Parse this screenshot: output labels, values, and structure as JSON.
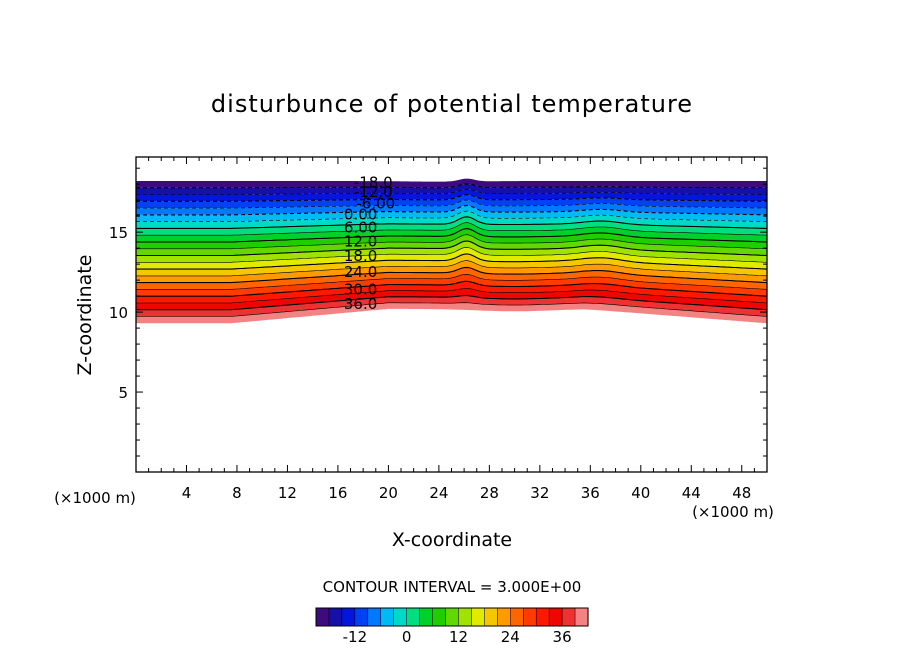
{
  "chart_data": {
    "type": "contour",
    "title": "disturbunce of potential temperature",
    "xlabel": "X-coordinate",
    "ylabel": "Z-coordinate",
    "x_unit": "(×1000 m)",
    "z_unit": "(×1000 m)",
    "xlim": [
      0,
      50
    ],
    "ylim": [
      0,
      19.7
    ],
    "x_ticks": [
      4,
      8,
      12,
      16,
      20,
      24,
      28,
      32,
      36,
      40,
      44,
      48
    ],
    "x_tick_labels": [
      "4",
      "8",
      "12",
      "16",
      "20",
      "24",
      "28",
      "32",
      "36",
      "40",
      "44",
      "48"
    ],
    "y_ticks": [
      5,
      10,
      15
    ],
    "y_tick_labels": [
      "5",
      "10",
      "15"
    ],
    "contour_interval_label": "CONTOUR INTERVAL = 3.000E+00",
    "contour_interval": 3,
    "value_range": [
      -21,
      42
    ],
    "contour_labels": [
      {
        "text": "-18.0",
        "x": 18.8,
        "y": 18.1
      },
      {
        "text": "-12.0",
        "x": 18.8,
        "y": 17.5
      },
      {
        "text": "-6.00",
        "x": 19.0,
        "y": 16.8
      },
      {
        "text": "0.00",
        "x": 17.8,
        "y": 16.1
      },
      {
        "text": "6.00",
        "x": 17.8,
        "y": 15.3
      },
      {
        "text": "12.0",
        "x": 17.8,
        "y": 14.4
      },
      {
        "text": "18.0",
        "x": 17.8,
        "y": 13.5
      },
      {
        "text": "24.0",
        "x": 17.8,
        "y": 12.5
      },
      {
        "text": "30.0",
        "x": 17.8,
        "y": 11.4
      },
      {
        "text": "36.0",
        "x": 17.8,
        "y": 10.5
      }
    ],
    "colorbar": {
      "ticks": [
        -12,
        0,
        12,
        24,
        36
      ],
      "tick_labels": [
        "-12",
        "0",
        "12",
        "24",
        "36"
      ]
    },
    "grid": false
  }
}
